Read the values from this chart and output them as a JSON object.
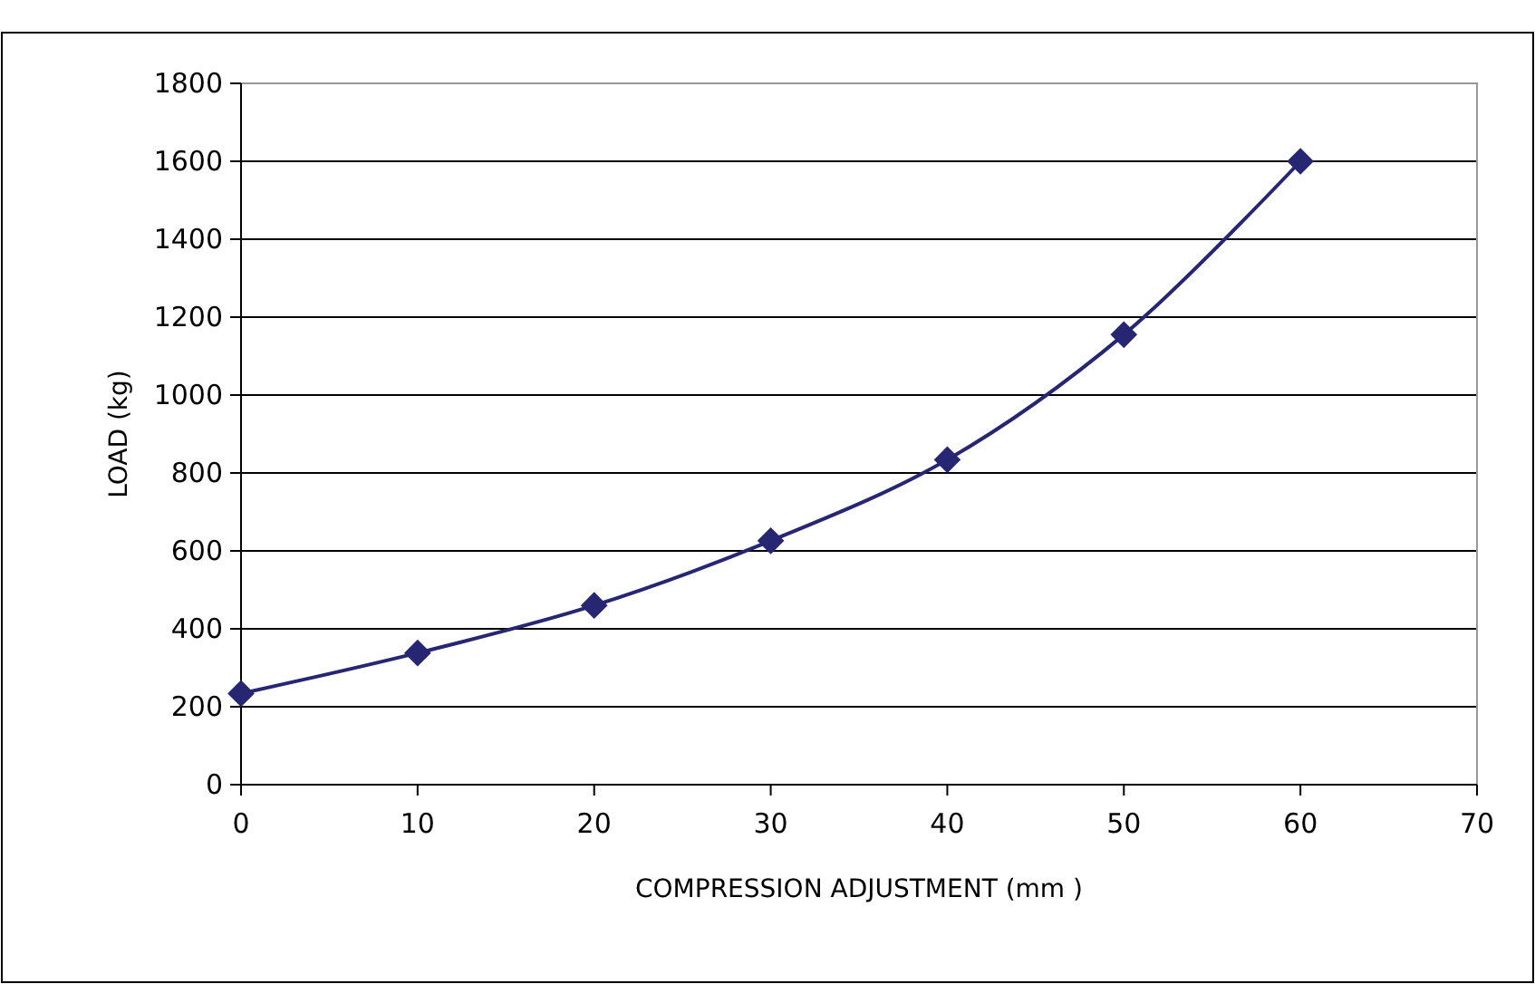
{
  "chart_data": {
    "type": "line",
    "xlabel": "COMPRESSION ADJUSTMENT (mm )",
    "ylabel": "LOAD  (kg)",
    "x": [
      0,
      10,
      20,
      30,
      40,
      50,
      60
    ],
    "series": [
      {
        "color": "#262673",
        "values": [
          234,
          338,
          460,
          626,
          834,
          1155,
          1600
        ]
      }
    ],
    "xlim": [
      0,
      70
    ],
    "xticks": [
      0,
      10,
      20,
      30,
      40,
      50,
      60,
      70
    ],
    "ylim": [
      0,
      1800
    ],
    "yticks": [
      0,
      200,
      400,
      600,
      800,
      1000,
      1200,
      1400,
      1600,
      1800
    ],
    "grid": "y",
    "marker": "diamond",
    "line_style": "solid"
  }
}
